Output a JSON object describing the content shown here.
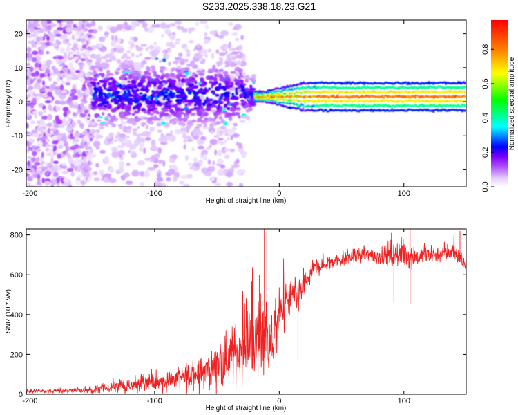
{
  "title": "S233.2025.338.18.23.G21",
  "chart_data": [
    {
      "type": "heatmap",
      "title": "S233.2025.338.18.23.G21",
      "xlabel": "Height of straight line (km)",
      "ylabel": "Frequency (Hz)",
      "xlim": [
        -203,
        150
      ],
      "ylim": [
        -25,
        24
      ],
      "x_ticks": [
        -200,
        -100,
        0,
        100
      ],
      "y_ticks": [
        -20,
        -10,
        0,
        10,
        20
      ],
      "colorbar": {
        "label": "Normalized spectral amplitude",
        "range": [
          0,
          0.97
        ],
        "ticks": [
          0.0,
          0.2,
          0.4,
          0.6,
          0.8
        ],
        "tick_labels": [
          "0.0",
          "0.2",
          "0.4",
          "0.6",
          "0.8"
        ],
        "colors": [
          "#ffffff",
          "#e6d0ff",
          "#b050ff",
          "#7a00ff",
          "#0000ff",
          "#00ffff",
          "#00ff00",
          "#ffff00",
          "#ff8000",
          "#ff0000"
        ]
      },
      "features": [
        {
          "name": "scattered noise",
          "x_range": [
            -203,
            -150
          ],
          "y_range": [
            -25,
            24
          ],
          "amplitude": 0.05
        },
        {
          "name": "broadband signal",
          "x_range": [
            -150,
            -20
          ],
          "y_center": 2,
          "y_spread": 6,
          "amplitude": 0.12
        },
        {
          "name": "carrier line",
          "x_range": [
            -20,
            150
          ],
          "y_center": 1.5,
          "amplitude": 0.9
        }
      ]
    },
    {
      "type": "line",
      "xlabel": "Height of straight line (km)",
      "ylabel": "SNR (10 * v/v)",
      "xlim": [
        -203,
        150
      ],
      "ylim": [
        0,
        830
      ],
      "x_ticks": [
        -200,
        -100,
        0,
        100
      ],
      "y_ticks": [
        0,
        200,
        400,
        600,
        800
      ],
      "series": [
        {
          "name": "SNR",
          "color": "#ee2222",
          "x": [
            -203,
            -180,
            -160,
            -150,
            -140,
            -120,
            -100,
            -80,
            -60,
            -50,
            -40,
            -30,
            -25,
            -20,
            -15,
            -12,
            -10,
            -5,
            0,
            5,
            10,
            15,
            20,
            25,
            30,
            40,
            50,
            60,
            70,
            80,
            90,
            100,
            110,
            120,
            130,
            140,
            145,
            150
          ],
          "values": [
            15,
            15,
            20,
            20,
            30,
            45,
            60,
            80,
            110,
            140,
            190,
            230,
            260,
            260,
            300,
            330,
            280,
            250,
            400,
            440,
            500,
            470,
            550,
            600,
            640,
            660,
            680,
            690,
            700,
            695,
            700,
            700,
            690,
            700,
            705,
            720,
            690,
            640
          ],
          "noise": [
            8,
            8,
            10,
            12,
            18,
            25,
            35,
            45,
            60,
            70,
            90,
            110,
            130,
            140,
            160,
            150,
            130,
            110,
            90,
            80,
            60,
            60,
            50,
            40,
            35,
            30,
            28,
            28,
            30,
            35,
            50,
            50,
            40,
            30,
            30,
            35,
            30,
            25
          ]
        }
      ],
      "spikes": [
        {
          "x": -16,
          "value": 600
        },
        {
          "x": -12,
          "value": 830
        },
        {
          "x": -10,
          "value": 820
        },
        {
          "x": 15,
          "value": 170
        },
        {
          "x": 90,
          "value": 810
        },
        {
          "x": 92,
          "value": 460
        },
        {
          "x": 105,
          "value": 450
        },
        {
          "x": 105,
          "value": 830
        },
        {
          "x": 145,
          "value": 820
        }
      ]
    }
  ]
}
